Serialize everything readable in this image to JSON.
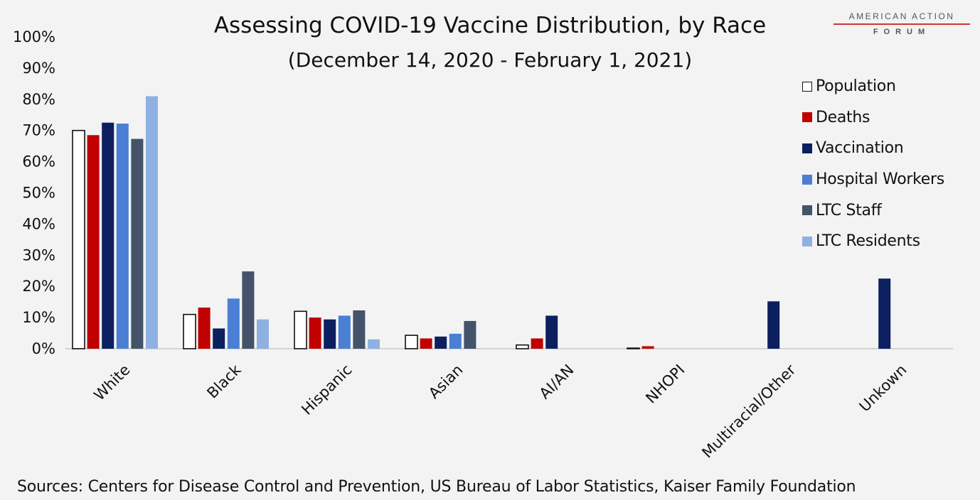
{
  "header": {
    "title": "Assessing COVID-19 Vaccine Distribution, by Race",
    "subtitle": "(December 14, 2020 - February 1, 2021)",
    "brand_line1": "AMERICAN ACTION",
    "brand_line2": "FORUM"
  },
  "footer": {
    "source": "Sources: Centers for Disease Control and Prevention, US Bureau of Labor Statistics, Kaiser Family Foundation"
  },
  "colors": {
    "population_fill": "#ffffff",
    "population_stroke": "#111111",
    "deaths": "#c00000",
    "vaccination": "#0c2060",
    "hospital_workers": "#4a7fd4",
    "ltc_staff": "#44536a",
    "ltc_residents": "#8fb0e2",
    "brand_accent": "#d23434"
  },
  "chart_data": {
    "type": "bar",
    "title": "Assessing COVID-19 Vaccine Distribution, by Race",
    "subtitle": "(December 14, 2020 - February 1, 2021)",
    "categories": [
      "White",
      "Black",
      "Hispanic",
      "Asian",
      "AI/AN",
      "NHOPI",
      "Multiracial/Other",
      "Unkown"
    ],
    "y_ticks": [
      "0%",
      "10%",
      "20%",
      "30%",
      "40%",
      "50%",
      "60%",
      "70%",
      "80%",
      "90%",
      "100%"
    ],
    "ylim": [
      0,
      100
    ],
    "y_unit": "%",
    "grid": false,
    "legend_position": "right",
    "series": [
      {
        "name": "Population",
        "color_key": "population_fill",
        "values": [
          70,
          11,
          12,
          4.3,
          1.2,
          0.2,
          null,
          null
        ]
      },
      {
        "name": "Deaths",
        "color_key": "deaths",
        "values": [
          68.5,
          13.2,
          10,
          3.3,
          3.3,
          0.8,
          null,
          null
        ]
      },
      {
        "name": "Vaccination",
        "color_key": "vaccination",
        "values": [
          72.5,
          6.5,
          9.4,
          3.9,
          10.6,
          null,
          15.2,
          22.5
        ]
      },
      {
        "name": "Hospital Workers",
        "color_key": "hospital_workers",
        "values": [
          72.2,
          16.1,
          10.6,
          4.8,
          null,
          null,
          null,
          null
        ]
      },
      {
        "name": "LTC Staff",
        "color_key": "ltc_staff",
        "values": [
          67.3,
          24.8,
          12.3,
          8.9,
          null,
          null,
          null,
          null
        ]
      },
      {
        "name": "LTC Residents",
        "color_key": "ltc_residents",
        "values": [
          81,
          9.4,
          3,
          null,
          null,
          null,
          null,
          null
        ]
      }
    ]
  }
}
